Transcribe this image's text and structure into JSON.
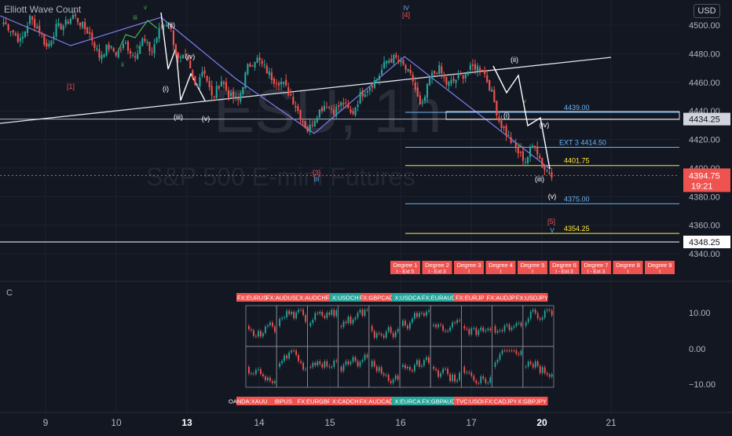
{
  "header": {
    "title": "Elliott Wave Count",
    "currency": "USD"
  },
  "watermark": {
    "symbol": "ESU, 1h",
    "name": "S&P 500 E-mini Futures"
  },
  "subpane_label": "C",
  "colors": {
    "bg": "#131722",
    "up": "#26a69a",
    "down": "#ef5350",
    "grid": "#1e222d",
    "channel": "#7b7ff0",
    "trend": "#e0e3eb",
    "blue": "#64b5f6",
    "yellow": "#ffeb3b"
  },
  "chart_data": [
    {
      "type": "candlestick",
      "title": "ESU, 1h",
      "subtitle": "S&P 500 E-mini Futures",
      "ylim": [
        4335,
        4513
      ],
      "y_ticks": [
        "4500.00",
        "4480.00",
        "4460.00",
        "4440.00",
        "4420.00",
        "4400.00",
        "4380.00",
        "4360.00",
        "4340.00"
      ],
      "x_ticks": [
        "9",
        "10",
        "13",
        "14",
        "15",
        "16",
        "17",
        "20",
        "21"
      ],
      "bold_x_ticks": [
        "13",
        "20"
      ],
      "price_labels": [
        {
          "value": 4434.25,
          "text": "4434.25",
          "style": "light"
        },
        {
          "value": 4394.75,
          "text": "4394.75",
          "subtext": "19:21",
          "style": "red"
        },
        {
          "value": 4348.25,
          "text": "4348.25",
          "style": "white"
        }
      ],
      "key_close_path": [
        4502,
        4496,
        4488,
        4505,
        4498,
        4484,
        4498,
        4500,
        4507,
        4500,
        4493,
        4478,
        4485,
        4480,
        4487,
        4478,
        4490,
        4481,
        4498,
        4503,
        4475,
        4477,
        4458,
        4470,
        4448,
        4462,
        4450,
        4447,
        4470,
        4477,
        4470,
        4462,
        4460,
        4451,
        4438,
        4426,
        4438,
        4445,
        4440,
        4446,
        4437,
        4451,
        4457,
        4463,
        4475,
        4477,
        4471,
        4462,
        4440,
        4463,
        4470,
        4458,
        4462,
        4466,
        4471,
        4470,
        4455,
        4432,
        4422,
        4412,
        4405,
        4418,
        4400,
        4396
      ],
      "annotations": {
        "wave_labels_white": [
          "(ii)",
          "(iv)",
          "(i)",
          "(iii)",
          "(v)",
          "(ii)",
          "(i)",
          "(iv)",
          "(iii)",
          "(v)"
        ],
        "wave_labels_green": [
          "iii",
          "v",
          "iv",
          "ii",
          "v",
          "iii"
        ],
        "wave_labels_red": [
          "[1]",
          "[3]",
          "[4]",
          "[5]"
        ],
        "wave_labels_blue": [
          "IV",
          "III",
          "V"
        ],
        "levels": [
          {
            "value": 4439.0,
            "text": "4439.00",
            "color": "blue"
          },
          {
            "value": 4414.5,
            "text": "EXT 3  4414.50",
            "color": "blue"
          },
          {
            "value": 4401.75,
            "text": "4401.75",
            "color": "yellow"
          },
          {
            "value": 4375.0,
            "text": "4375.00",
            "color": "blue"
          },
          {
            "value": 4354.25,
            "text": "4354.25",
            "color": "yellow"
          }
        ],
        "degree_buttons": [
          {
            "title": "Degree 1",
            "sub": "I - Ext 5"
          },
          {
            "title": "Degree 2",
            "sub": "I - Ext 3"
          },
          {
            "title": "Degree 3",
            "sub": "I"
          },
          {
            "title": "Degree 4",
            "sub": "I"
          },
          {
            "title": "Degree 5",
            "sub": "I"
          },
          {
            "title": "Degree 6",
            "sub": "I - Ext 3"
          },
          {
            "title": "Degree 7",
            "sub": "I - Ext 3"
          },
          {
            "title": "Degree 8",
            "sub": "I"
          },
          {
            "title": "Degree 9",
            "sub": "I"
          }
        ]
      }
    },
    {
      "type": "heatmap",
      "title": "",
      "y_ticks": [
        "10.00",
        "0.00",
        "−10.00"
      ],
      "ylim": [
        -12,
        12
      ],
      "top_symbols": [
        {
          "name": "FX:EURUS",
          "color": "down"
        },
        {
          "name": "FX:AUDUSD",
          "color": "down"
        },
        {
          "name": "X:AUDCHF",
          "color": "down"
        },
        {
          "name": "X:USDCH",
          "color": "up"
        },
        {
          "name": "FX:GBPCAD",
          "color": "down"
        },
        {
          "name": "X:USDCA",
          "color": "up"
        },
        {
          "name": "FX:EURAUD",
          "color": "up"
        },
        {
          "name": "FX:EURJP",
          "color": "down"
        },
        {
          "name": "FX:AUDJP",
          "color": "down"
        },
        {
          "name": "FX:USDJPY",
          "color": "down"
        }
      ],
      "bottom_symbols": [
        {
          "name": "OANDA:XAUUSD",
          "color": "down"
        },
        {
          "name": "IBPUS",
          "color": "down"
        },
        {
          "name": "FX:EURGBP",
          "color": "down"
        },
        {
          "name": "X:CADCH",
          "color": "down"
        },
        {
          "name": "FX:AUDCAD",
          "color": "down"
        },
        {
          "name": "X:EURCA",
          "color": "up"
        },
        {
          "name": "FX:GBPAUD",
          "color": "up"
        },
        {
          "name": "TVC:USOI",
          "color": "down"
        },
        {
          "name": "FX:CADJPY",
          "color": "down"
        },
        {
          "name": "X:GBPJPY",
          "color": "down"
        }
      ]
    }
  ]
}
